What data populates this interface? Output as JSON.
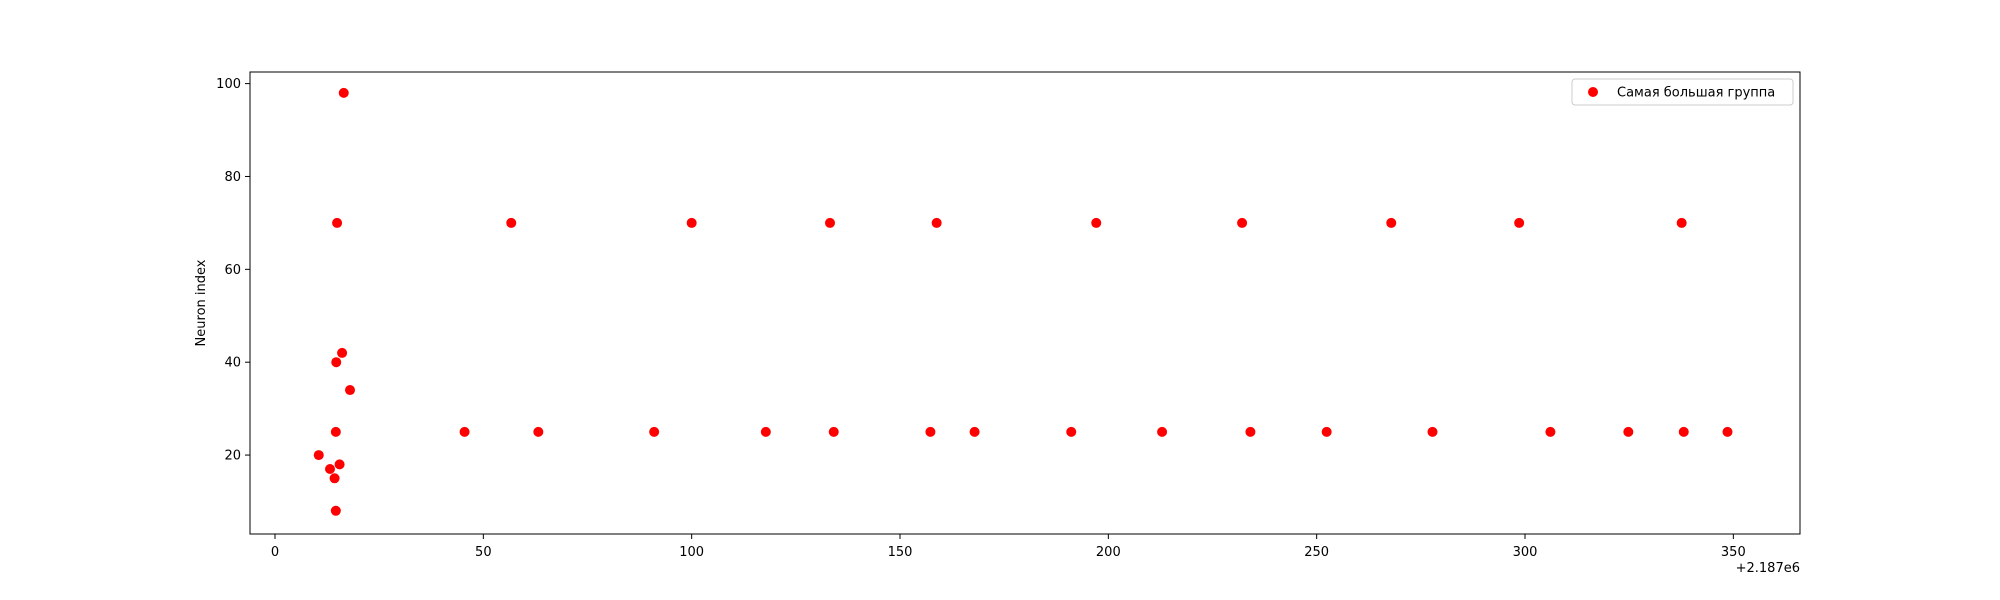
{
  "chart_data": {
    "type": "scatter",
    "title": "",
    "xlabel": "",
    "ylabel": "Neuron index",
    "x_offset_label": "+2.187e6",
    "xlim": [
      -6,
      366
    ],
    "ylim": [
      3,
      102.5
    ],
    "xticks": [
      0,
      50,
      100,
      150,
      200,
      250,
      300,
      350
    ],
    "yticks": [
      20,
      40,
      60,
      80,
      100
    ],
    "grid": false,
    "legend_position": "top-right",
    "series": [
      {
        "name": "Самая большая группа",
        "color": "#ff0000",
        "points": [
          [
            10.5,
            20
          ],
          [
            13.2,
            17
          ],
          [
            14.3,
            15
          ],
          [
            14.6,
            8
          ],
          [
            14.6,
            25
          ],
          [
            14.7,
            40
          ],
          [
            14.9,
            70
          ],
          [
            15.5,
            18
          ],
          [
            16.1,
            42
          ],
          [
            16.5,
            98
          ],
          [
            18,
            34
          ],
          [
            45.5,
            25
          ],
          [
            56.7,
            70
          ],
          [
            63.2,
            25
          ],
          [
            91,
            25
          ],
          [
            100,
            70
          ],
          [
            117.8,
            25
          ],
          [
            133.2,
            70
          ],
          [
            134.1,
            25
          ],
          [
            157.3,
            25
          ],
          [
            158.8,
            70
          ],
          [
            167.9,
            25
          ],
          [
            191.1,
            25
          ],
          [
            197.1,
            70
          ],
          [
            212.9,
            25
          ],
          [
            232.1,
            70
          ],
          [
            234.1,
            25
          ],
          [
            252.4,
            25
          ],
          [
            267.9,
            70
          ],
          [
            277.8,
            25
          ],
          [
            298.6,
            70
          ],
          [
            306.1,
            25
          ],
          [
            324.8,
            25
          ],
          [
            337.6,
            70
          ],
          [
            338.1,
            25
          ],
          [
            348.6,
            25
          ]
        ]
      }
    ]
  }
}
